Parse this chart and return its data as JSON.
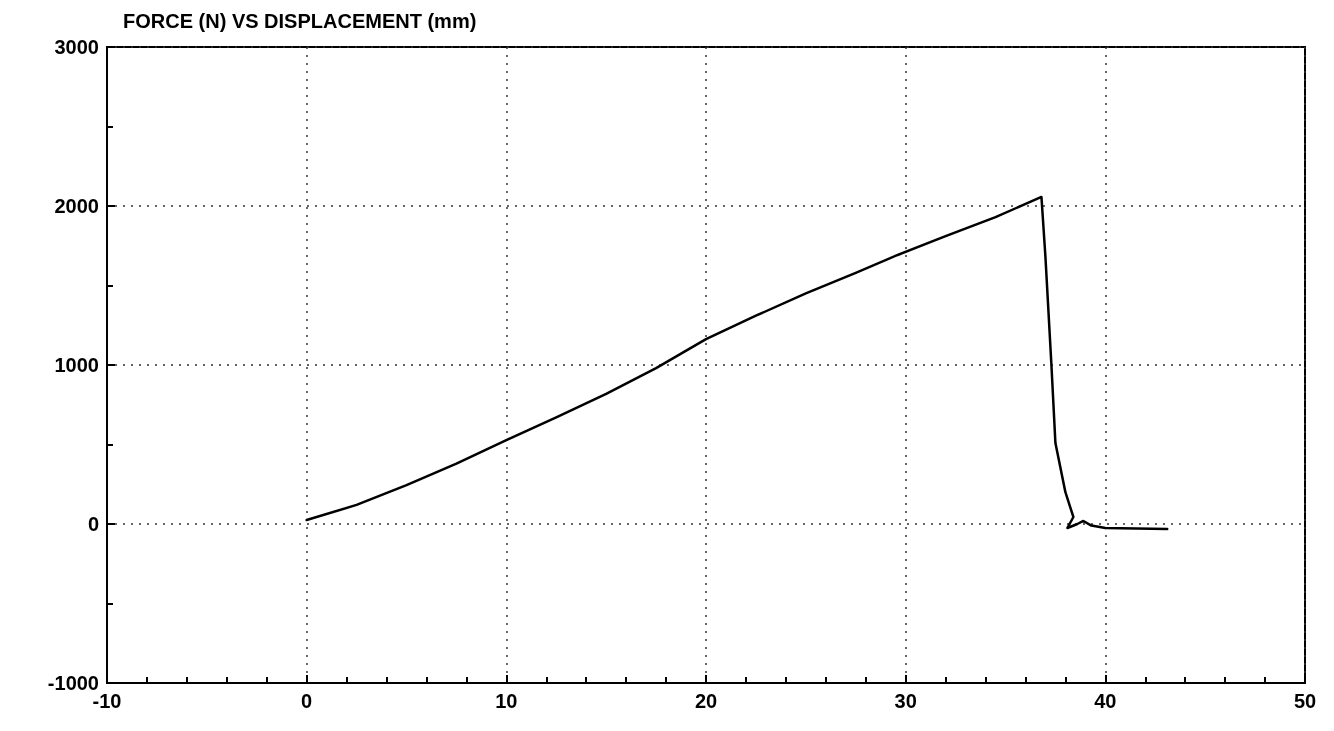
{
  "chart_data": {
    "type": "line",
    "title": "FORCE (N) VS DISPLACEMENT (mm)",
    "x": [
      0,
      2.5,
      5,
      7.5,
      10,
      12.5,
      15,
      17.5,
      20,
      22.5,
      25,
      27.5,
      29.6,
      32,
      34.5,
      36.8,
      37.0,
      37.3,
      37.5,
      38.0,
      38.4,
      38.1,
      38.6,
      38.9,
      39.3,
      40,
      43.1
    ],
    "series": [
      {
        "color": "#000000",
        "values": [
          25,
          120,
          245,
          380,
          528,
          670,
          818,
          980,
          1163,
          1310,
          1450,
          1580,
          1692,
          1810,
          1930,
          2057,
          1680,
          1000,
          509,
          200,
          44,
          -25,
          0,
          19,
          -10,
          -25,
          -31
        ]
      }
    ],
    "xlim": [
      -10,
      50
    ],
    "xticks": [
      -10,
      0,
      10,
      20,
      30,
      40,
      50
    ],
    "ylim": [
      -1000,
      3000
    ],
    "yticks": [
      -1000,
      0,
      1000,
      2000,
      3000
    ],
    "grid": true,
    "marker": "none",
    "line_style": "solid"
  }
}
